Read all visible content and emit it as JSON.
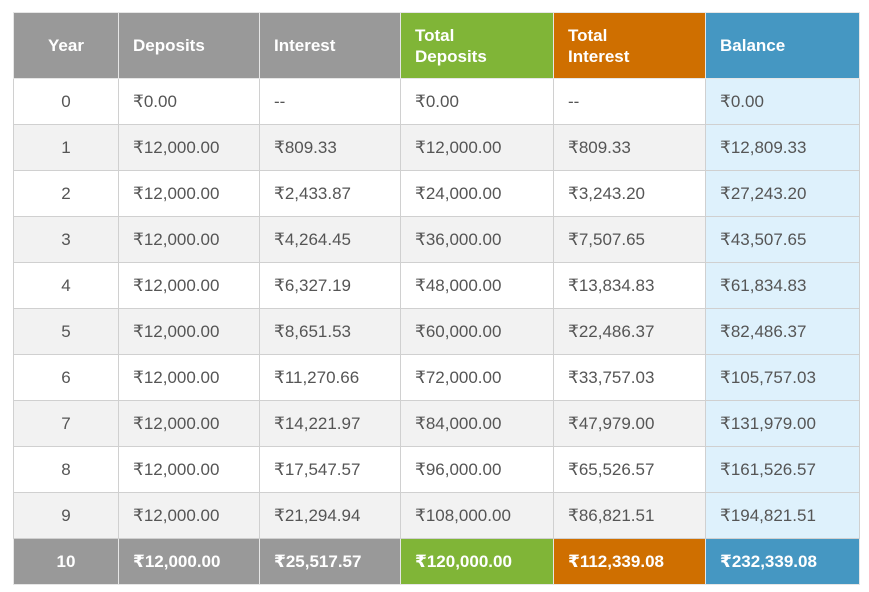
{
  "headers": {
    "year": "Year",
    "deposits": "Deposits",
    "interest": "Interest",
    "total_deposits_line1": "Total",
    "total_deposits_line2": "Deposits",
    "total_interest_line1": "Total",
    "total_interest_line2": "Interest",
    "balance": "Balance"
  },
  "colors": {
    "header_gray": "#999999",
    "total_deposits_green": "#80b537",
    "total_interest_orange": "#cf6f00",
    "balance_blue": "#4597c2",
    "balance_cell_light": "#def1fc",
    "row_stripe": "#f2f2f2"
  },
  "rows": [
    {
      "year": "0",
      "deposits": "₹0.00",
      "interest": "--",
      "total_deposits": "₹0.00",
      "total_interest": "--",
      "balance": "₹0.00"
    },
    {
      "year": "1",
      "deposits": "₹12,000.00",
      "interest": "₹809.33",
      "total_deposits": "₹12,000.00",
      "total_interest": "₹809.33",
      "balance": "₹12,809.33"
    },
    {
      "year": "2",
      "deposits": "₹12,000.00",
      "interest": "₹2,433.87",
      "total_deposits": "₹24,000.00",
      "total_interest": "₹3,243.20",
      "balance": "₹27,243.20"
    },
    {
      "year": "3",
      "deposits": "₹12,000.00",
      "interest": "₹4,264.45",
      "total_deposits": "₹36,000.00",
      "total_interest": "₹7,507.65",
      "balance": "₹43,507.65"
    },
    {
      "year": "4",
      "deposits": "₹12,000.00",
      "interest": "₹6,327.19",
      "total_deposits": "₹48,000.00",
      "total_interest": "₹13,834.83",
      "balance": "₹61,834.83"
    },
    {
      "year": "5",
      "deposits": "₹12,000.00",
      "interest": "₹8,651.53",
      "total_deposits": "₹60,000.00",
      "total_interest": "₹22,486.37",
      "balance": "₹82,486.37"
    },
    {
      "year": "6",
      "deposits": "₹12,000.00",
      "interest": "₹11,270.66",
      "total_deposits": "₹72,000.00",
      "total_interest": "₹33,757.03",
      "balance": "₹105,757.03"
    },
    {
      "year": "7",
      "deposits": "₹12,000.00",
      "interest": "₹14,221.97",
      "total_deposits": "₹84,000.00",
      "total_interest": "₹47,979.00",
      "balance": "₹131,979.00"
    },
    {
      "year": "8",
      "deposits": "₹12,000.00",
      "interest": "₹17,547.57",
      "total_deposits": "₹96,000.00",
      "total_interest": "₹65,526.57",
      "balance": "₹161,526.57"
    },
    {
      "year": "9",
      "deposits": "₹12,000.00",
      "interest": "₹21,294.94",
      "total_deposits": "₹108,000.00",
      "total_interest": "₹86,821.51",
      "balance": "₹194,821.51"
    },
    {
      "year": "10",
      "deposits": "₹12,000.00",
      "interest": "₹25,517.57",
      "total_deposits": "₹120,000.00",
      "total_interest": "₹112,339.08",
      "balance": "₹232,339.08"
    }
  ]
}
